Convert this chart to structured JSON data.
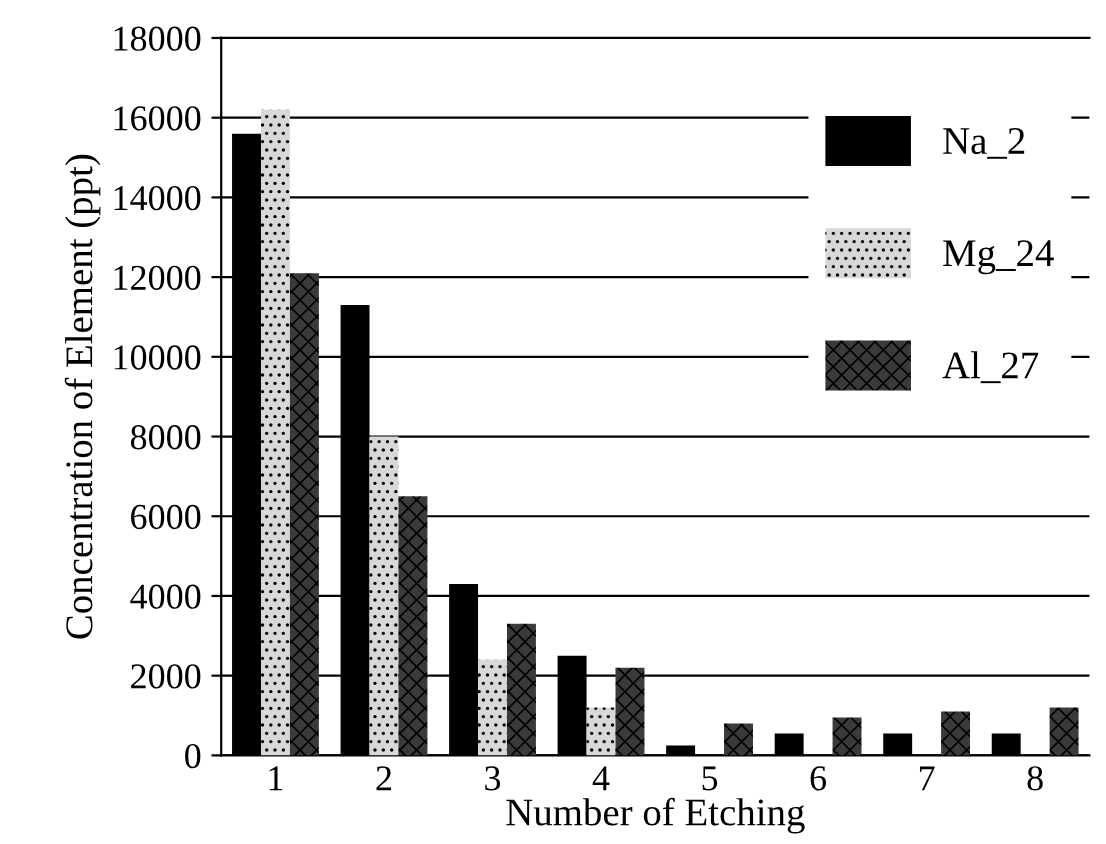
{
  "chart_data": {
    "type": "bar",
    "xlabel": "Number of Etching",
    "ylabel": "Concentration of Element (ppt)",
    "categories": [
      "1",
      "2",
      "3",
      "4",
      "5",
      "6",
      "7",
      "8"
    ],
    "series": [
      {
        "name": "Na_2",
        "color": "#000000",
        "values": [
          15600,
          11300,
          4300,
          2500,
          250,
          550,
          550,
          550
        ]
      },
      {
        "name": "Mg_24",
        "color": "#d8d8d8",
        "values": [
          16200,
          8000,
          2400,
          1200,
          0,
          0,
          0,
          0
        ]
      },
      {
        "name": "Al_27",
        "color": "#3a3a3a",
        "values": [
          12100,
          6500,
          3300,
          2200,
          800,
          950,
          1100,
          1200
        ]
      }
    ],
    "ylim": [
      0,
      18000
    ],
    "yticks": [
      0,
      2000,
      4000,
      6000,
      8000,
      10000,
      12000,
      14000,
      16000,
      18000
    ],
    "grid": "y",
    "legend": "top right"
  }
}
